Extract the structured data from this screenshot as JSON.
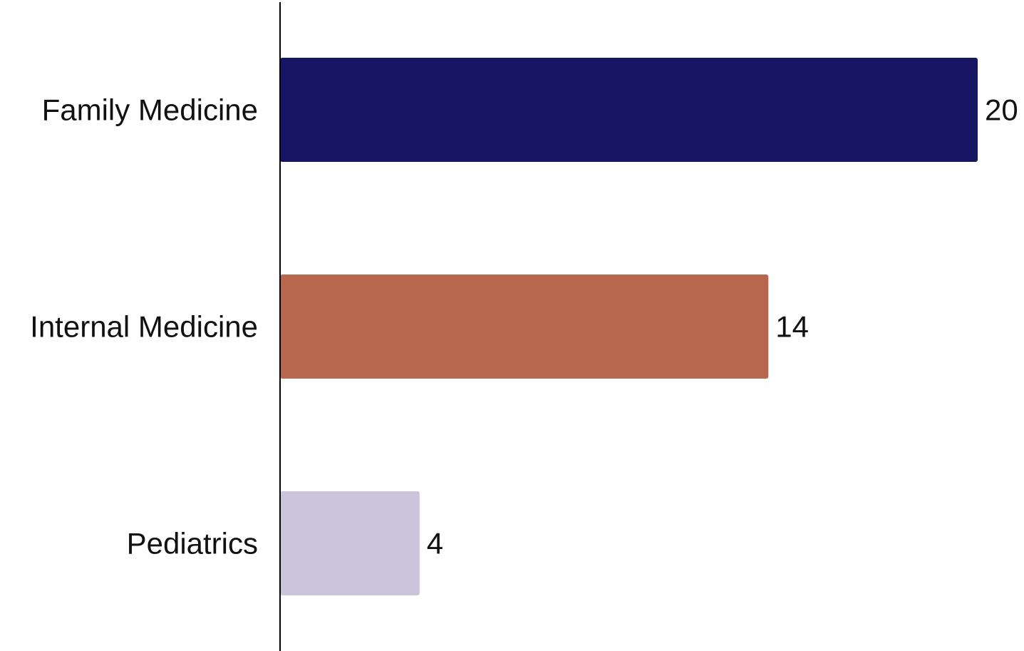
{
  "chart_data": {
    "type": "bar",
    "orientation": "horizontal",
    "categories": [
      "Family Medicine",
      "Internal Medicine",
      "Pediatrics"
    ],
    "values": [
      20,
      14,
      4
    ],
    "colors": [
      "#161561",
      "#b7674e",
      "#cac5db"
    ],
    "xlim": [
      0,
      20
    ],
    "grid": false,
    "axis_color": "#000000"
  }
}
